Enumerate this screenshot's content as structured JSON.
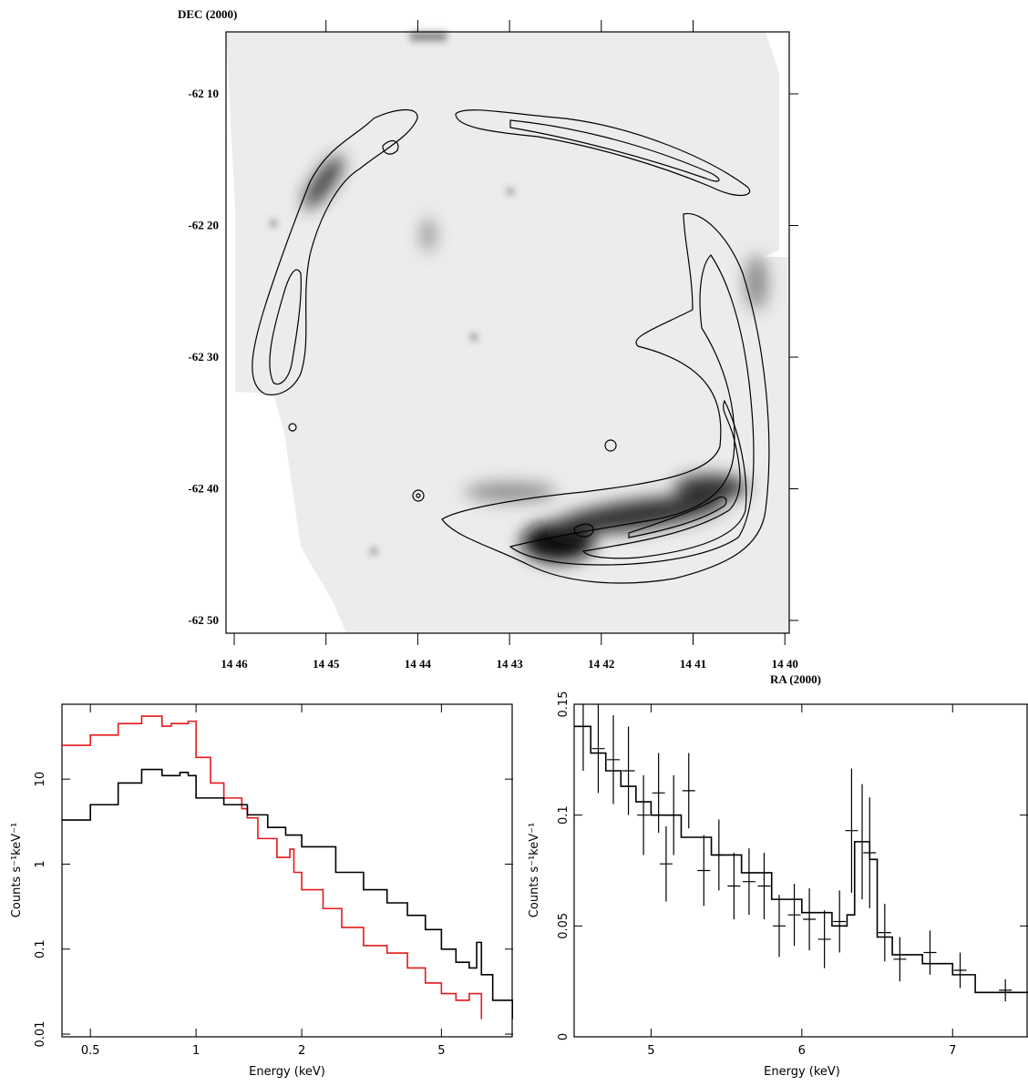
{
  "sky_image": {
    "ylabel": "DEC (2000)",
    "xlabel": "RA (2000)",
    "dec_ticks": [
      "-62 10",
      "-62 20",
      "-62 30",
      "-62 40",
      "-62 50"
    ],
    "ra_ticks": [
      "14 46",
      "14 45",
      "14 44",
      "14 43",
      "14 42",
      "14 41",
      "14 40"
    ]
  },
  "chart_data": [
    {
      "type": "line",
      "xlabel": "Energy (keV)",
      "ylabel": "Counts s⁻¹keV⁻¹",
      "xlog": true,
      "ylog": true,
      "xlim": [
        0.415,
        8
      ],
      "ylim": [
        0.0093,
        76
      ],
      "xticks": [
        0.5,
        1,
        2,
        5
      ],
      "yticks": [
        0.01,
        0.1,
        1,
        10
      ],
      "series": [
        {
          "color": "#e41a1c",
          "style": "step",
          "x": [
            0.415,
            0.5,
            0.6,
            0.7,
            0.8,
            0.85,
            0.95,
            1.0,
            1.1,
            1.2,
            1.35,
            1.4,
            1.5,
            1.7,
            1.85,
            1.9,
            2.0,
            2.3,
            2.6,
            3,
            3.5,
            4,
            4.5,
            5,
            5.5,
            6,
            6.5
          ],
          "values": [
            25,
            33,
            45,
            55,
            42,
            45,
            48,
            18,
            9,
            6,
            4.5,
            3.5,
            2,
            1.2,
            1.5,
            0.8,
            0.5,
            0.3,
            0.18,
            0.11,
            0.09,
            0.06,
            0.04,
            0.03,
            0.025,
            0.03,
            0.015
          ]
        },
        {
          "color": "#000000",
          "style": "step",
          "x": [
            0.415,
            0.5,
            0.6,
            0.7,
            0.8,
            0.9,
            0.95,
            1.0,
            1.2,
            1.4,
            1.6,
            1.8,
            2,
            2.5,
            3,
            3.5,
            4,
            4.5,
            5,
            5.5,
            6,
            6.3,
            6.5,
            7,
            8
          ],
          "values": [
            3.3,
            5,
            9,
            13,
            11,
            12,
            11,
            6,
            5,
            3.8,
            2.7,
            2.2,
            1.6,
            0.8,
            0.5,
            0.35,
            0.25,
            0.17,
            0.1,
            0.07,
            0.06,
            0.12,
            0.05,
            0.025,
            0.015
          ]
        }
      ]
    },
    {
      "type": "line",
      "xlabel": "Energy (keV)",
      "ylabel": "Counts s⁻¹keV⁻¹",
      "xlog": false,
      "ylog": false,
      "xlim": [
        4.49,
        7.5
      ],
      "ylim": [
        0,
        0.15
      ],
      "xticks": [
        5,
        6,
        7
      ],
      "yticks": [
        0,
        0.05,
        0.1,
        0.15
      ],
      "series": [
        {
          "color": "#000000",
          "style": "crosses",
          "x": [
            4.55,
            4.65,
            4.75,
            4.85,
            4.95,
            5.05,
            5.1,
            5.15,
            5.25,
            5.35,
            5.45,
            5.55,
            5.65,
            5.75,
            5.85,
            5.95,
            6.05,
            6.15,
            6.25,
            6.33,
            6.4,
            6.45,
            6.55,
            6.65,
            6.85,
            7.05,
            7.35
          ],
          "values": [
            0.14,
            0.13,
            0.125,
            0.12,
            0.1,
            0.11,
            0.078,
            0.1,
            0.111,
            0.075,
            0.082,
            0.068,
            0.07,
            0.068,
            0.05,
            0.055,
            0.053,
            0.044,
            0.052,
            0.093,
            0.088,
            0.083,
            0.047,
            0.035,
            0.038,
            0.03,
            0.021
          ],
          "errors": [
            0.02,
            0.02,
            0.02,
            0.02,
            0.018,
            0.018,
            0.017,
            0.018,
            0.017,
            0.016,
            0.016,
            0.015,
            0.015,
            0.015,
            0.014,
            0.014,
            0.014,
            0.013,
            0.014,
            0.028,
            0.026,
            0.025,
            0.013,
            0.01,
            0.01,
            0.008,
            0.005
          ]
        },
        {
          "color": "#000000",
          "style": "step",
          "x": [
            4.49,
            4.6,
            4.7,
            4.8,
            4.9,
            5.0,
            5.2,
            5.4,
            5.6,
            5.8,
            6.0,
            6.2,
            6.3,
            6.35,
            6.45,
            6.5,
            6.6,
            6.8,
            7.0,
            7.15,
            7.5
          ],
          "values": [
            0.14,
            0.128,
            0.12,
            0.113,
            0.106,
            0.1,
            0.09,
            0.082,
            0.074,
            0.062,
            0.056,
            0.05,
            0.055,
            0.088,
            0.08,
            0.045,
            0.037,
            0.033,
            0.028,
            0.02,
            0.02
          ]
        }
      ]
    }
  ]
}
